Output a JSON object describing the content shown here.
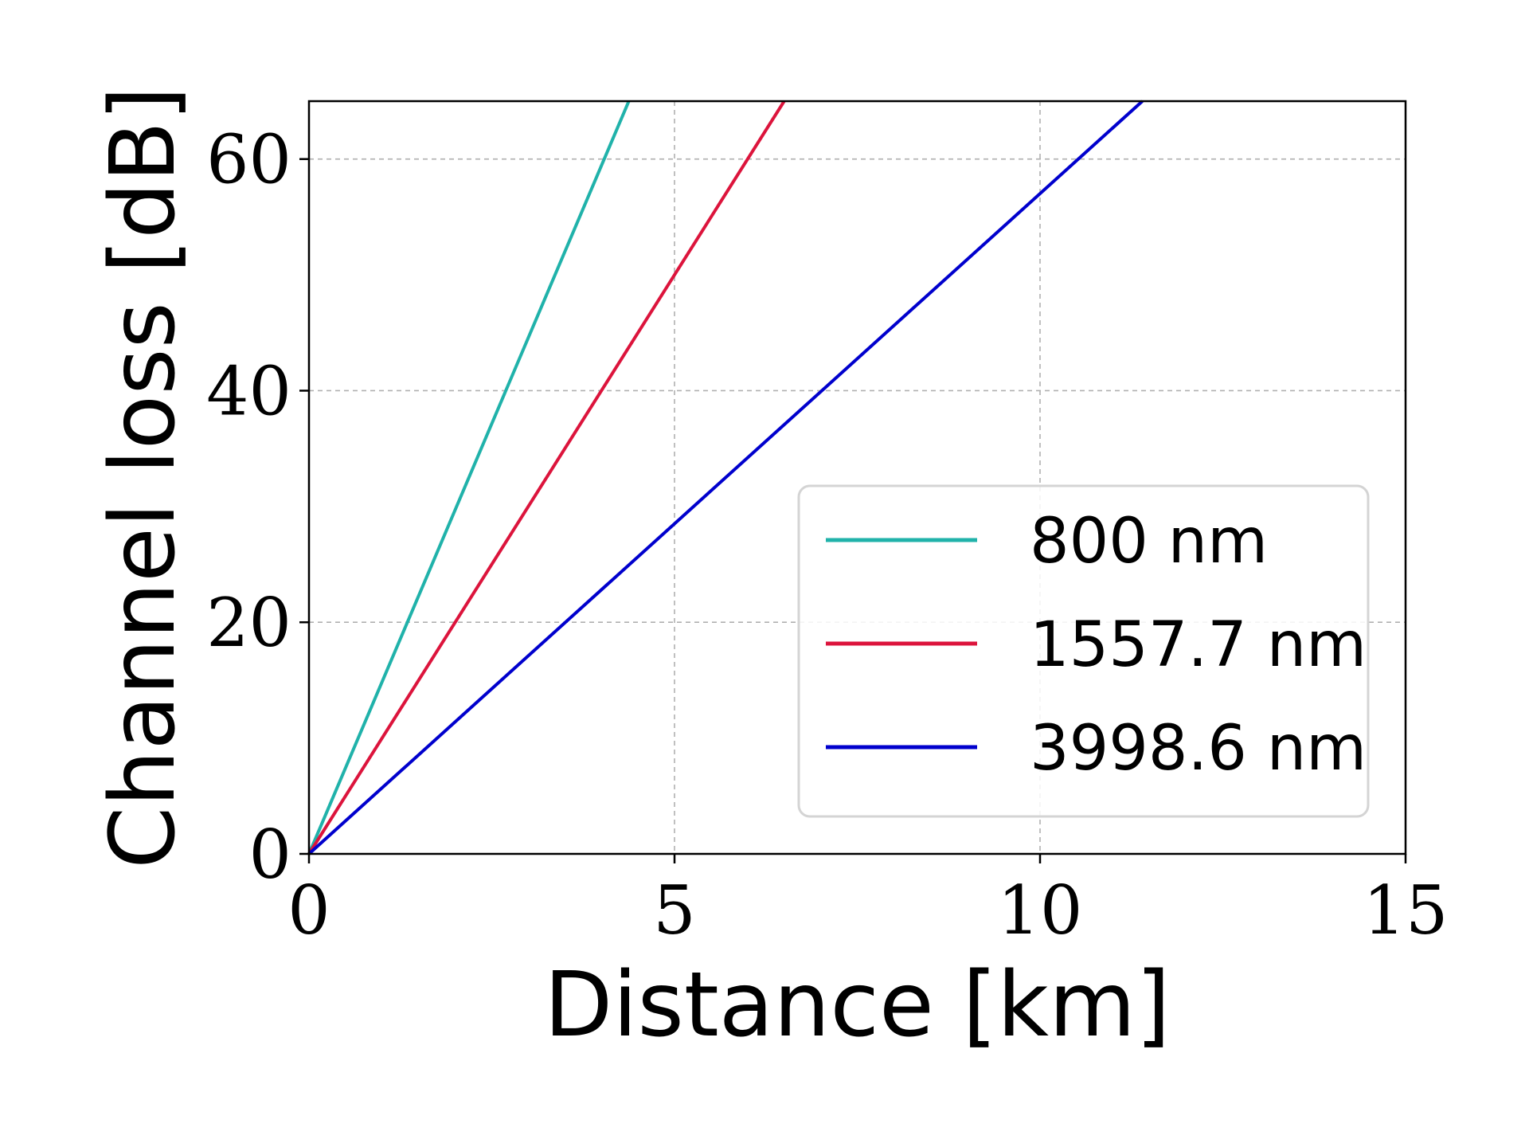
{
  "chart_data": {
    "type": "line",
    "title": "",
    "xlabel": "Distance [km]",
    "ylabel": "Channel loss [dB]",
    "xlim": [
      0,
      15
    ],
    "ylim": [
      0,
      65
    ],
    "xticks": [
      0,
      5,
      10,
      15
    ],
    "yticks": [
      0,
      20,
      40,
      60
    ],
    "grid": true,
    "legend_position": "lower-right",
    "series": [
      {
        "name": "800 nm",
        "color": "#20b2aa",
        "x": [
          0,
          4.375
        ],
        "y": [
          0,
          65
        ]
      },
      {
        "name": "1557.7 nm",
        "color": "#dc143c",
        "x": [
          0,
          6.5
        ],
        "y": [
          0,
          65
        ]
      },
      {
        "name": "3998.6 nm",
        "color": "#0000cd",
        "x": [
          0,
          11.4
        ],
        "y": [
          0,
          65
        ]
      }
    ]
  }
}
